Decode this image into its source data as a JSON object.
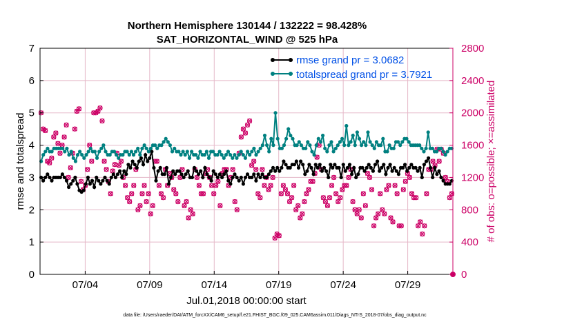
{
  "chart_data": {
    "type": "line",
    "title_line1": "Northern Hemisphere 130144 / 132222 = 98.428%",
    "title_line2": "SAT_HORIZONTAL_WIND @ 525 hPa",
    "xlabel": "Jul.01,2018 00:00:00 start",
    "ylabel_left": "rmse and totalspread",
    "ylabel_right": "# of obs: o=possible; ×=assimilated",
    "xlim": [
      0,
      32
    ],
    "ylim_left": [
      0,
      7
    ],
    "ylim_right": [
      0,
      2800
    ],
    "x_ticks": [
      {
        "x": 3.5,
        "label": "07/04"
      },
      {
        "x": 8.5,
        "label": "07/09"
      },
      {
        "x": 13.5,
        "label": "07/14"
      },
      {
        "x": 18.5,
        "label": "07/19"
      },
      {
        "x": 23.5,
        "label": "07/24"
      },
      {
        "x": 28.5,
        "label": "07/29"
      }
    ],
    "y_ticks_left": [
      "0",
      "1",
      "2",
      "3",
      "4",
      "5",
      "6",
      "7"
    ],
    "y_ticks_right": [
      "0",
      "400",
      "800",
      "1200",
      "1600",
      "2000",
      "2400",
      "2800"
    ],
    "grid": true,
    "colors": {
      "rmse": "#000000",
      "spread": "#008080",
      "obs": "#cc0066",
      "grid": "#e5b8c8",
      "legend_text": "#0050e6"
    },
    "series": [
      {
        "name": "rmse grand pr = 3.0682",
        "color": "#000000",
        "values": [
          3.0,
          2.9,
          3.0,
          3.1,
          3.0,
          2.9,
          3.0,
          3.0,
          3.0,
          3.0,
          3.1,
          3.0,
          2.9,
          2.7,
          2.8,
          2.9,
          3.0,
          2.8,
          2.6,
          2.55,
          2.6,
          2.8,
          3.0,
          2.8,
          2.9,
          2.7,
          3.0,
          2.9,
          2.8,
          2.9,
          3.0,
          2.9,
          2.8,
          3.0,
          3.1,
          3.0,
          3.1,
          3.2,
          3.0,
          3.2,
          3.1,
          3.4,
          3.3,
          3.5,
          3.4,
          3.3,
          3.5,
          3.6,
          3.4,
          3.7,
          3.5,
          3.6,
          3.8,
          3.3,
          2.9,
          3.2,
          3.3,
          3.1,
          3.1,
          3.3,
          2.8,
          3.0,
          3.2,
          3.1,
          3.2,
          3.2,
          3.1,
          3.0,
          3.1,
          3.2,
          3.0,
          3.0,
          3.3,
          3.2,
          3.1,
          3.2,
          3.0,
          3.3,
          3.1,
          3.0,
          2.9,
          3.2,
          3.1,
          3.0,
          3.1,
          3.0,
          3.1,
          3.2,
          2.9,
          2.8,
          3.0,
          3.1,
          3.0,
          2.9,
          3.0,
          2.8,
          3.0,
          3.1,
          3.0,
          3.0,
          3.1,
          2.9,
          3.1,
          3.0,
          3.1,
          3.0,
          3.0,
          3.1,
          3.2,
          3.3,
          3.2,
          3.3,
          3.2,
          3.3,
          3.5,
          3.4,
          3.3,
          3.3,
          3.4,
          3.4,
          3.5,
          3.3,
          3.5,
          3.4,
          3.1,
          3.2,
          3.4,
          3.3,
          3.1,
          3.4,
          3.3,
          3.4,
          3.2,
          3.3,
          3.2,
          3.0,
          3.4,
          3.3,
          3.4,
          3.3,
          3.3,
          3.0,
          3.4,
          3.2,
          3.3,
          3.4,
          3.1,
          3.3,
          3.0,
          3.1,
          3.3,
          3.3,
          3.2,
          3.3,
          3.4,
          3.3,
          3.2,
          3.4,
          3.5,
          3.2,
          3.3,
          3.4,
          3.1,
          3.3,
          3.4,
          3.2,
          3.3,
          3.2,
          3.1,
          3.3,
          3.3,
          3.4,
          3.2,
          3.3,
          3.4,
          3.3,
          3.3,
          3.2,
          3.3,
          3.0,
          3.4,
          3.5,
          3.6,
          3.3,
          3.0,
          3.3,
          3.1,
          3.2,
          3.0,
          2.9,
          2.8,
          2.8,
          2.8,
          2.9
        ]
      },
      {
        "name": "totalspread grand pr = 3.7921",
        "color": "#008080",
        "values": [
          3.5,
          3.7,
          3.8,
          3.9,
          3.8,
          3.8,
          3.9,
          3.9,
          3.9,
          3.9,
          3.9,
          3.8,
          3.9,
          3.7,
          3.8,
          3.6,
          3.5,
          3.7,
          3.8,
          3.7,
          3.6,
          3.7,
          3.8,
          3.9,
          3.8,
          3.8,
          3.6,
          3.8,
          3.9,
          4.0,
          3.8,
          3.7,
          3.7,
          3.8,
          3.8,
          3.7,
          3.6,
          3.7,
          3.7,
          3.8,
          3.8,
          3.7,
          3.8,
          3.7,
          3.8,
          3.9,
          3.7,
          3.9,
          4.0,
          3.9,
          3.8,
          3.9,
          4.0,
          4.0,
          3.9,
          4.0,
          4.0,
          4.1,
          4.2,
          4.1,
          4.0,
          3.8,
          3.9,
          3.8,
          3.8,
          3.7,
          3.8,
          3.7,
          3.8,
          3.6,
          3.8,
          3.7,
          3.7,
          3.6,
          3.8,
          3.7,
          3.7,
          3.8,
          3.6,
          3.8,
          3.8,
          3.7,
          3.7,
          3.8,
          3.7,
          3.6,
          3.7,
          3.8,
          3.7,
          3.6,
          3.7,
          3.6,
          3.7,
          3.8,
          3.7,
          3.6,
          3.8,
          3.7,
          3.8,
          3.9,
          3.7,
          3.8,
          3.9,
          4.0,
          4.3,
          4.0,
          3.8,
          4.2,
          4.0,
          5.0,
          4.2,
          3.9,
          3.9,
          4.0,
          4.2,
          4.5,
          4.3,
          4.2,
          4.0,
          4.0,
          4.1,
          4.0,
          3.9,
          3.9,
          4.1,
          4.0,
          3.8,
          3.7,
          4.0,
          4.2,
          4.1,
          4.3,
          3.9,
          3.8,
          4.0,
          4.1,
          3.8,
          3.9,
          4.0,
          4.1,
          4.2,
          4.0,
          4.6,
          4.0,
          4.1,
          4.3,
          4.0,
          4.4,
          4.2,
          4.0,
          4.1,
          4.0,
          4.4,
          4.1,
          4.0,
          3.9,
          4.1,
          4.0,
          4.0,
          4.2,
          3.8,
          3.8,
          4.0,
          3.9,
          3.9,
          4.1,
          4.1,
          4.0,
          4.1,
          4.2,
          4.2,
          4.1,
          4.0,
          4.0,
          4.0,
          4.0,
          4.0,
          3.9,
          3.8,
          3.9,
          4.4,
          3.9,
          3.9,
          3.8,
          3.8,
          3.9,
          3.9,
          3.8,
          3.7,
          3.8,
          3.9,
          3.9
        ]
      }
    ],
    "obs_counts": {
      "name": "# of obs",
      "values": [
        2000,
        1800,
        1780,
        1400,
        1380,
        1440,
        1700,
        1750,
        1620,
        1500,
        1600,
        1700,
        1850,
        1200,
        1320,
        1500,
        1800,
        2020,
        2050,
        1150,
        1050,
        1100,
        1300,
        1600,
        1400,
        2000,
        2000,
        2020,
        2060,
        1900,
        1400,
        1300,
        1150,
        1000,
        1280,
        1360,
        1500,
        1350,
        1400,
        1200,
        1100,
        950,
        900,
        1000,
        1100,
        1300,
        800,
        850,
        1000,
        1100,
        900,
        1000,
        750,
        850,
        1400,
        1400,
        1100,
        1000,
        950,
        1300,
        1100,
        1250,
        1200,
        1050,
        1000,
        900,
        1200,
        1300,
        850,
        900,
        700,
        800,
        750,
        1300,
        1200,
        1100,
        1000,
        1000,
        1250,
        1300,
        1200,
        1100,
        1000,
        1100,
        1150,
        850,
        1250,
        1300,
        1300,
        1100,
        1200,
        1300,
        900,
        800,
        1500,
        1700,
        1800,
        1750,
        1850,
        1900,
        1350,
        1400,
        1300,
        1000,
        950,
        1300,
        1100,
        1200,
        1050,
        1100,
        1200,
        450,
        500,
        480,
        1000,
        1100,
        1050,
        1000,
        900,
        950,
        1100,
        800,
        850,
        700,
        750,
        900,
        1000,
        1050,
        1150,
        1150,
        1250,
        1450,
        1600,
        1300,
        950,
        900,
        850,
        950,
        1100,
        1200,
        1000,
        900,
        950,
        1050,
        1100,
        1100,
        1200,
        1300,
        900,
        800,
        750,
        800,
        700,
        1000,
        850,
        1250,
        1200,
        1050,
        600,
        700,
        750,
        1000,
        800,
        750,
        1050,
        1100,
        700,
        650,
        1100,
        1000,
        600,
        600,
        1050,
        1150,
        1250,
        1200,
        1000,
        950,
        950,
        600,
        650,
        500,
        600,
        1000,
        1300,
        1300,
        1400,
        1350,
        1550,
        1400,
        1550,
        1500,
        1200,
        1150,
        950,
        1000
      ]
    }
  },
  "footnote": "data file: /Users/raeder/DAI/ATM_forcXX/CAM6_setup/f.e21.FHIST_BGC.f09_025.CAM6assim.011/Diags_NTrS_2018-07/obs_diag_output.nc"
}
